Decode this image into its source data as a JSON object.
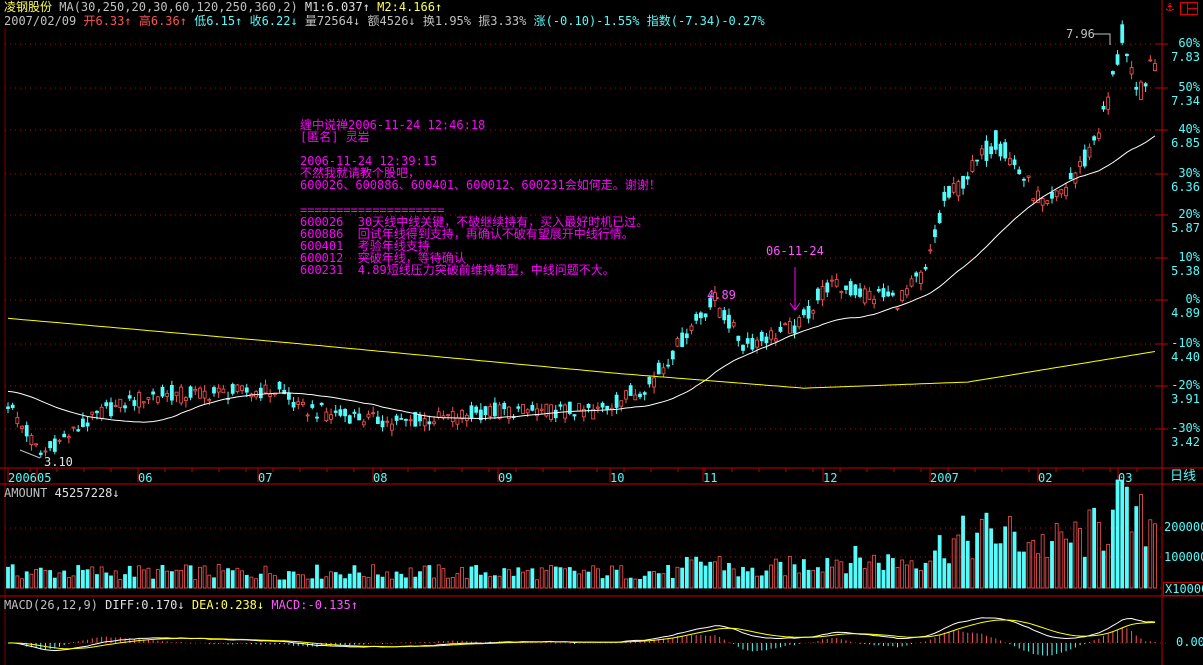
{
  "header": {
    "stock_name": "凌钢股份",
    "ma_params": "MA(30,250,20,30,60,120,250,360,2)",
    "m1": "M1:6.037↑",
    "m2": "M2:4.166↑",
    "date": "2007/02/09",
    "open": "开6.33↑",
    "high": "高6.36↑",
    "low": "低6.15↑",
    "close": "收6.22↓",
    "volume": "量72564↓",
    "amount": "额4526↓",
    "turnover": "换1.95%",
    "amplitude": "振3.33%",
    "change": "涨(-0.10)-1.55%",
    "index": "指数(-7.34)-0.27%"
  },
  "toolbar": {
    "period_label": "日线"
  },
  "note": {
    "lines": [
      "缠中说禅2006-11-24 12:46:18",
      "[匿名] 灵岩",
      "",
      "2006-11-24 12:39:15",
      "不然我就请教个股吧，",
      "600026、600886、600401、600012、600231会如何走。谢谢！",
      "",
      "====================",
      "600026  30天线中线关键，不破继续持有，买入最好时机已过。",
      "600886  回试年线得到支持，再确认不破有望展开中线行情。",
      "600401  考验年线支持",
      "600012  突破年线，等待确认",
      "600231  4.89短线压力突破前维持箱型，中线问题不大。"
    ]
  },
  "annotations": {
    "low_label": "3.10",
    "high_label": "7.96",
    "mark_price": "4.89",
    "mark_date": "06-11-24"
  },
  "volume_panel": {
    "title": "AMOUNT",
    "value": "45257228↓",
    "ticks": [
      "200000",
      "100000"
    ],
    "unit": "X10000"
  },
  "macd_panel": {
    "title": "MACD(26,12,9)",
    "diff": "DIFF:0.170↓",
    "dea": "DEA:0.238↓",
    "macd": "MACD:-0.135↑",
    "tick": "0.00"
  },
  "colors": {
    "up": "#ff5454",
    "down": "#54fcfc",
    "ma1": "#ffffff",
    "ma2": "#ffff00",
    "grid": "#c00000"
  },
  "chart_data": {
    "type": "candlestick",
    "title": "凌钢股份 日线",
    "price_axis": [
      {
        "pct": "60%",
        "price": "7.83"
      },
      {
        "pct": "50%",
        "price": "7.34"
      },
      {
        "pct": "40%",
        "price": "6.85"
      },
      {
        "pct": "30%",
        "price": "6.36"
      },
      {
        "pct": "20%",
        "price": "5.87"
      },
      {
        "pct": "10%",
        "price": "5.38"
      },
      {
        "pct": "0%",
        "price": "4.89"
      },
      {
        "pct": "-10%",
        "price": "4.40"
      },
      {
        "pct": "-20%",
        "price": "3.91"
      },
      {
        "pct": "-30%",
        "price": "3.42"
      }
    ],
    "ylim": [
      3.0,
      8.1
    ],
    "time_labels": [
      "2006",
      "05",
      "06",
      "07",
      "08",
      "09",
      "10",
      "11",
      "12",
      "2007",
      "02",
      "03"
    ],
    "close_keypoints": [
      [
        0,
        3.7
      ],
      [
        7,
        3.12
      ],
      [
        20,
        3.6
      ],
      [
        30,
        3.8
      ],
      [
        58,
        3.85
      ],
      [
        62,
        3.65
      ],
      [
        83,
        3.48
      ],
      [
        105,
        3.62
      ],
      [
        126,
        3.62
      ],
      [
        137,
        3.92
      ],
      [
        147,
        4.66
      ],
      [
        151,
        4.89
      ],
      [
        157,
        4.37
      ],
      [
        169,
        4.6
      ],
      [
        175,
        5.06
      ],
      [
        190,
        4.89
      ],
      [
        196,
        5.2
      ],
      [
        200,
        6.0
      ],
      [
        211,
        6.72
      ],
      [
        222,
        5.92
      ],
      [
        230,
        6.49
      ],
      [
        234,
        7.0
      ],
      [
        236,
        7.41
      ],
      [
        238,
        7.9
      ],
      [
        241,
        7.2
      ],
      [
        243,
        7.45
      ],
      [
        245,
        7.58
      ]
    ],
    "ma250_keypoints": [
      [
        0,
        4.68
      ],
      [
        60,
        4.4
      ],
      [
        130,
        4.05
      ],
      [
        170,
        3.88
      ],
      [
        205,
        3.95
      ],
      [
        245,
        4.3
      ]
    ],
    "volume_scale_max": 280000
  }
}
